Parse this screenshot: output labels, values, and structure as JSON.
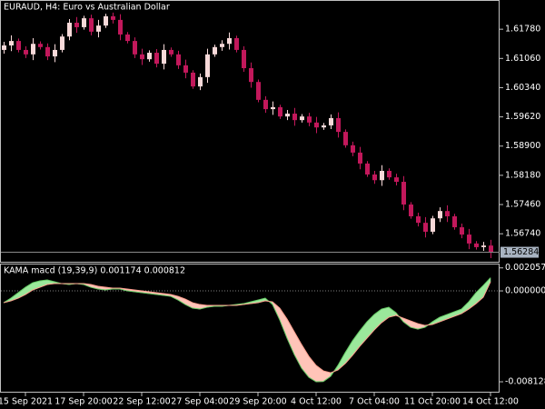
{
  "chart_data": [
    {
      "type": "candlestick",
      "title": "EURAUD, H4:  Euro vs Australian Dollar",
      "categories": [
        null,
        null,
        null,
        "15 Sep 2021",
        null,
        null,
        null,
        null,
        null,
        null,
        null,
        "17 Sep 20:00",
        null,
        null,
        null,
        null,
        null,
        null,
        null,
        "22 Sep 12:00",
        null,
        null,
        null,
        null,
        null,
        null,
        null,
        "27 Sep 04:00",
        null,
        null,
        null,
        null,
        null,
        null,
        null,
        "29 Sep 20:00",
        null,
        null,
        null,
        null,
        null,
        null,
        null,
        "4 Oct 12:00",
        null,
        null,
        null,
        null,
        null,
        null,
        null,
        "7 Oct 04:00",
        null,
        null,
        null,
        null,
        null,
        null,
        null,
        "11 Oct 20:00",
        null,
        null,
        null,
        null,
        null,
        null,
        null,
        "14 Oct 12:00"
      ],
      "open": [
        1.6127,
        1.6138,
        1.6149,
        1.6127,
        1.6116,
        1.6142,
        1.6134,
        1.6111,
        1.6127,
        1.616,
        1.6194,
        1.6183,
        1.6205,
        1.6172,
        1.6187,
        1.621,
        1.6201,
        1.6165,
        1.6149,
        1.6116,
        1.6104,
        1.612,
        1.6093,
        1.6127,
        1.6116,
        1.6089,
        1.6071,
        1.6037,
        1.606,
        1.6116,
        1.6134,
        1.6142,
        1.6156,
        1.6127,
        1.6082,
        1.6048,
        1.6004,
        1.5981,
        1.5986,
        1.5963,
        1.597,
        1.5954,
        1.5963,
        1.5948,
        1.5936,
        1.5941,
        1.5959,
        1.5925,
        1.5892,
        1.5874,
        1.5847,
        1.582,
        1.5806,
        1.5829,
        1.5813,
        1.5802,
        1.5746,
        1.5717,
        1.5701,
        1.5679,
        1.5712,
        1.573,
        1.5717,
        1.569,
        1.5672,
        1.565,
        1.5641,
        1.5645
      ],
      "high": [
        1.6147,
        1.6163,
        1.6155,
        1.6136,
        1.6156,
        1.6148,
        1.6143,
        1.6141,
        1.6166,
        1.6203,
        1.6208,
        1.6211,
        1.6214,
        1.6201,
        1.6216,
        1.6219,
        1.6215,
        1.6171,
        1.6158,
        1.613,
        1.6126,
        1.6129,
        1.6141,
        1.6133,
        1.6125,
        1.6103,
        1.6077,
        1.6069,
        1.613,
        1.614,
        1.6151,
        1.617,
        1.6162,
        1.6136,
        1.6096,
        1.6054,
        1.6013,
        1.6,
        1.5992,
        1.5979,
        1.5984,
        1.5969,
        1.5972,
        1.5962,
        1.5947,
        1.5968,
        1.5973,
        1.5931,
        1.5901,
        1.5888,
        1.5853,
        1.5829,
        1.5843,
        1.5835,
        1.5822,
        1.5816,
        1.5752,
        1.5726,
        1.5715,
        1.5718,
        1.5739,
        1.5744,
        1.5723,
        1.5699,
        1.5686,
        1.5656,
        1.5654,
        1.5659
      ],
      "low": [
        1.6118,
        1.6124,
        1.6121,
        1.6107,
        1.6102,
        1.6128,
        1.6102,
        1.6097,
        1.6121,
        1.6151,
        1.6169,
        1.6177,
        1.6163,
        1.6158,
        1.6181,
        1.6192,
        1.6151,
        1.6143,
        1.6107,
        1.609,
        1.6098,
        1.6084,
        1.6079,
        1.611,
        1.608,
        1.6057,
        1.6031,
        1.6028,
        1.6046,
        1.611,
        1.6125,
        1.6128,
        1.6121,
        1.6073,
        1.6034,
        1.5998,
        1.5972,
        1.5967,
        1.5957,
        1.5954,
        1.594,
        1.5948,
        1.5939,
        1.5922,
        1.593,
        1.5932,
        1.5911,
        1.5886,
        1.5865,
        1.5833,
        1.5814,
        1.5797,
        1.5792,
        1.5807,
        1.5793,
        1.5732,
        1.5711,
        1.5692,
        1.5665,
        1.5673,
        1.5703,
        1.5703,
        1.5684,
        1.5663,
        1.5636,
        1.5635,
        1.5632,
        1.5614
      ],
      "close": [
        1.6138,
        1.6149,
        1.6127,
        1.6116,
        1.6142,
        1.6134,
        1.6111,
        1.6127,
        1.616,
        1.6194,
        1.6183,
        1.6205,
        1.6172,
        1.6187,
        1.621,
        1.6201,
        1.6165,
        1.6149,
        1.6116,
        1.6104,
        1.612,
        1.6093,
        1.6127,
        1.6116,
        1.6089,
        1.6071,
        1.6037,
        1.606,
        1.6116,
        1.6134,
        1.6142,
        1.6156,
        1.6127,
        1.6082,
        1.6048,
        1.6004,
        1.5981,
        1.5986,
        1.5963,
        1.597,
        1.5954,
        1.5963,
        1.5948,
        1.5936,
        1.5941,
        1.5959,
        1.5925,
        1.5892,
        1.5874,
        1.5847,
        1.582,
        1.5806,
        1.5829,
        1.5813,
        1.5802,
        1.5746,
        1.5717,
        1.5701,
        1.5679,
        1.5712,
        1.573,
        1.5717,
        1.569,
        1.5672,
        1.565,
        1.5641,
        1.5645,
        1.56284
      ],
      "up_color": "#f7d9d9",
      "down_color": "#c2185b",
      "last_price": 1.56284,
      "ylim": [
        1.5605,
        1.625
      ],
      "yticks": [
        {
          "value": 1.6178,
          "label": "1.61780"
        },
        {
          "value": 1.6106,
          "label": "1.61060"
        },
        {
          "value": 1.6034,
          "label": "1.60340"
        },
        {
          "value": 1.5962,
          "label": "1.59620"
        },
        {
          "value": 1.589,
          "label": "1.58900"
        },
        {
          "value": 1.5818,
          "label": "1.58180"
        },
        {
          "value": 1.5746,
          "label": "1.57460"
        },
        {
          "value": 1.5674,
          "label": "1.56740"
        }
      ]
    },
    {
      "type": "line",
      "title": "KAMA macd (19,39,9) 0.001174 0.000812",
      "series": [
        {
          "color": "#66cc66",
          "values": [
            -0.001057,
            -0.00065,
            -0.000163,
            0.000325,
            0.000732,
            0.000894,
            0.000976,
            0.000813,
            0.00065,
            0.000569,
            0.00065,
            0.000569,
            0.000325,
            0.000163,
            8.1e-05,
            0.000163,
            0.000163,
            0,
            -8.1e-05,
            -0.000163,
            -0.000244,
            -0.000325,
            -0.000407,
            -0.000488,
            -0.000813,
            -0.00122,
            -0.001545,
            -0.001626,
            -0.001463,
            -0.001382,
            -0.001382,
            -0.001301,
            -0.00122,
            -0.001138,
            -0.000976,
            -0.000813,
            -0.00065,
            -0.00122,
            -0.002602,
            -0.004228,
            -0.005691,
            -0.006911,
            -0.007724,
            -0.008128,
            -0.0081,
            -0.007642,
            -0.006667,
            -0.005528,
            -0.004472,
            -0.003577,
            -0.002764,
            -0.002114,
            -0.001626,
            -0.001463,
            -0.001951,
            -0.002764,
            -0.003252,
            -0.003415,
            -0.003252,
            -0.002764,
            -0.002358,
            -0.002114,
            -0.00187,
            -0.001626,
            -0.000976,
            -0.000163,
            0.000488,
            0.001174
          ]
        },
        {
          "color": "#ff9f8f",
          "values": [
            -0.001057,
            -0.000894,
            -0.00065,
            -0.000325,
            8.1e-05,
            0.000325,
            0.000569,
            0.00065,
            0.00065,
            0.00065,
            0.00065,
            0.00065,
            0.000569,
            0.000407,
            0.000325,
            0.000244,
            0.000244,
            0.000163,
            8.1e-05,
            0,
            -8.1e-05,
            -0.000163,
            -0.000244,
            -0.000325,
            -0.000488,
            -0.000732,
            -0.001057,
            -0.00122,
            -0.001301,
            -0.001301,
            -0.001301,
            -0.001301,
            -0.001301,
            -0.00122,
            -0.001138,
            -0.001057,
            -0.000894,
            -0.000976,
            -0.001545,
            -0.00252,
            -0.003659,
            -0.004797,
            -0.005854,
            -0.006667,
            -0.007154,
            -0.007317,
            -0.007073,
            -0.006504,
            -0.005772,
            -0.004959,
            -0.004228,
            -0.003496,
            -0.002846,
            -0.002358,
            -0.002195,
            -0.002439,
            -0.002683,
            -0.002927,
            -0.003089,
            -0.003008,
            -0.002764,
            -0.00252,
            -0.002276,
            -0.002033,
            -0.001626,
            -0.001138,
            -0.000569,
            0.000812
          ]
        }
      ],
      "up_fill": "#9be89b",
      "down_fill": "#ffc4b8",
      "levels": [
        0
      ],
      "ylim": [
        -0.0091,
        0.00228
      ],
      "yticks": [
        0.002057,
        {
          "value": 0,
          "label": "0.000000"
        },
        -0.008128
      ]
    }
  ]
}
